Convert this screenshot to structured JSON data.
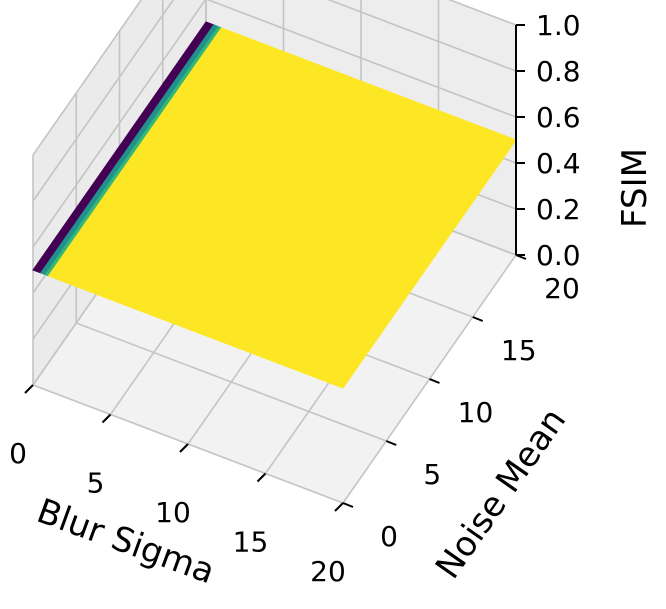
{
  "chart_data": {
    "type": "surface3d",
    "title": "",
    "xlabel": "Blur Sigma",
    "ylabel": "Noise Mean",
    "zlabel": "FSIM",
    "xlim": [
      0,
      20
    ],
    "ylim": [
      0,
      20
    ],
    "zlim": [
      0,
      1.0
    ],
    "grid": true,
    "colormap": "viridis",
    "colors": {
      "low": "#440154",
      "mid": "#21918c",
      "high": "#fde725",
      "edge": "#35b779"
    },
    "x_ticks": [
      "0",
      "5",
      "10",
      "15",
      "20"
    ],
    "y_ticks": [
      "0",
      "5",
      "10",
      "15",
      "20"
    ],
    "z_ticks": [
      "0.0",
      "0.2",
      "0.4",
      "0.6",
      "0.8",
      "1.0"
    ],
    "surface": {
      "x_start": 0,
      "x_end": 20,
      "y_start": 0,
      "y_end": 20,
      "bands": [
        {
          "x0": 0.0,
          "x1": 0.5,
          "fsim": 0.5,
          "color": "#440154"
        },
        {
          "x0": 0.5,
          "x1": 0.8,
          "fsim": 0.5,
          "color": "#21918c"
        },
        {
          "x0": 0.8,
          "x1": 1.0,
          "fsim": 0.5,
          "color": "#35b779"
        },
        {
          "x0": 1.0,
          "x1": 20.0,
          "fsim": 0.5,
          "color": "#fde725"
        }
      ]
    }
  }
}
